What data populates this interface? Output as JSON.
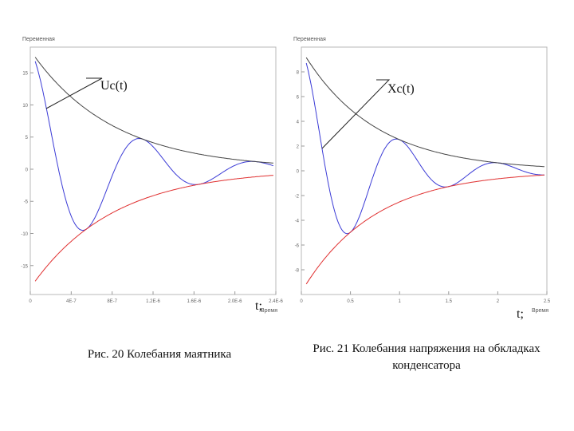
{
  "chart_data": [
    {
      "type": "line",
      "ylabel": "Переменная",
      "xlabel": "Время",
      "x_ticks": [
        "0",
        "4E-7",
        "8E-7",
        "1.2E-6",
        "1.6E-6",
        "2.0E-6",
        "2.4E-6"
      ],
      "x_tick_values": [
        0,
        0.4,
        0.8,
        1.2,
        1.6,
        2.0,
        2.4
      ],
      "y_ticks": [
        "15",
        "10",
        "5",
        "0",
        "-5",
        "-10",
        "-15"
      ],
      "y_tick_values": [
        15,
        10,
        5,
        0,
        -5,
        -10,
        -15
      ],
      "xlim": [
        0,
        2.4
      ],
      "ylim": [
        -19.5,
        19
      ],
      "annotation": "Uc(t)",
      "time_marker": "t;",
      "series": [
        {
          "color": "#3b3bd6",
          "kind": "damped_oscillation",
          "amplitude": 18.5,
          "decay": 1.25,
          "omega": 5.7
        },
        {
          "color": "#444444",
          "kind": "upper_envelope",
          "amplitude": 18.5,
          "decay": 1.25
        },
        {
          "color": "#e03030",
          "kind": "lower_envelope",
          "amplitude": 18.5,
          "decay": 1.25
        }
      ]
    },
    {
      "type": "line",
      "ylabel": "Переменная",
      "xlabel": "Время",
      "x_ticks": [
        "0",
        "0.5",
        "1",
        "1.5",
        "2",
        "2.5"
      ],
      "x_tick_values": [
        0,
        0.5,
        1,
        1.5,
        2,
        2.5
      ],
      "y_ticks": [
        "8",
        "6",
        "4",
        "2",
        "0",
        "-2",
        "-4",
        "-6",
        "-8"
      ],
      "y_tick_values": [
        8,
        6,
        4,
        2,
        0,
        -2,
        -4,
        -6,
        -8
      ],
      "xlim": [
        0,
        2.5
      ],
      "ylim": [
        -10,
        10
      ],
      "annotation": "Xc(t)",
      "time_marker": "t;",
      "series": [
        {
          "color": "#3b3bd6",
          "kind": "damped_oscillation",
          "amplitude": 9.8,
          "decay": 1.36,
          "omega": 6.28
        },
        {
          "color": "#444444",
          "kind": "upper_envelope",
          "amplitude": 9.8,
          "decay": 1.36
        },
        {
          "color": "#e03030",
          "kind": "lower_envelope",
          "amplitude": 9.8,
          "decay": 1.36
        }
      ]
    }
  ],
  "captions": {
    "left": "Рис. 20 Колебания маятника",
    "right": "Рис. 21 Колебания напряжения на обкладках конденсатора"
  }
}
